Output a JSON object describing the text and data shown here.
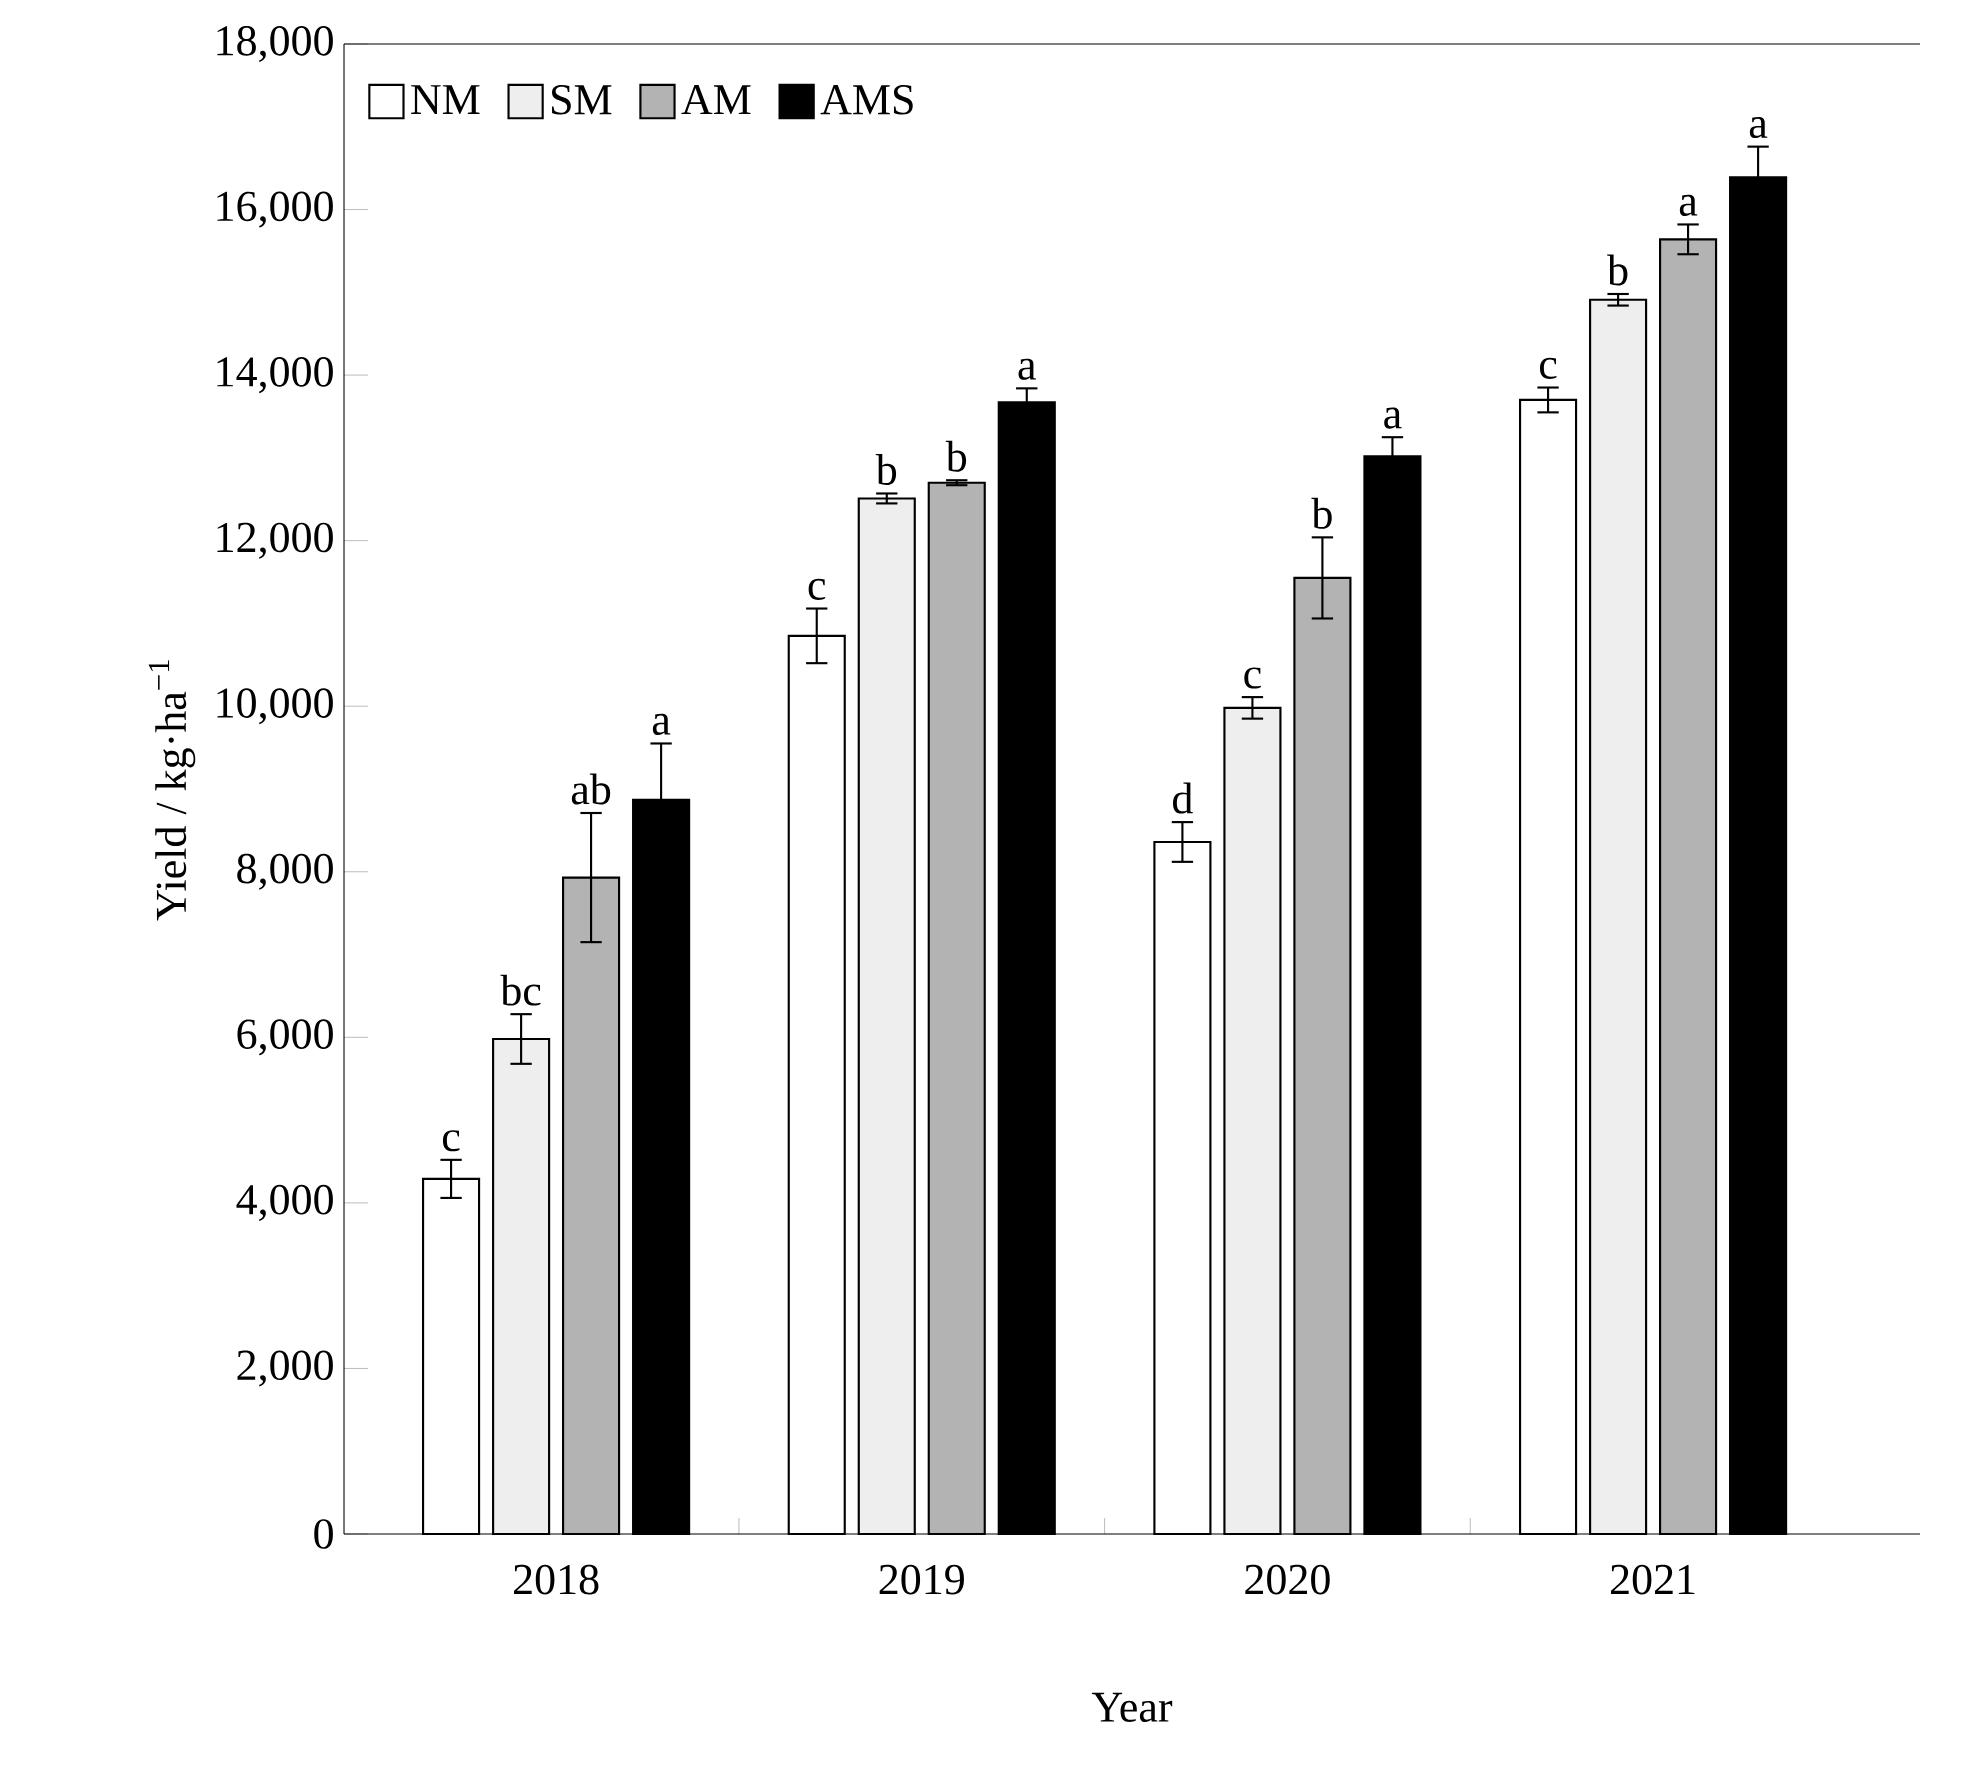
{
  "chart_data": {
    "type": "bar",
    "xlabel": "Year",
    "ylabel": "Yield / kg·ha$^{−1}$",
    "categories": [
      "2018",
      "2019",
      "2020",
      "2021"
    ],
    "series": [
      {
        "name": "NM",
        "color": "#ffffff",
        "values": [
          4290,
          10850,
          8360,
          13700
        ],
        "errors": [
          230,
          330,
          240,
          150
        ],
        "value_labels": [
          "c",
          "c",
          "d",
          "c"
        ]
      },
      {
        "name": "SM",
        "color": "#eeeeee",
        "values": [
          5980,
          12510,
          9980,
          14910
        ],
        "errors": [
          300,
          60,
          130,
          70
        ],
        "value_labels": [
          "bc",
          "b",
          "c",
          "b"
        ]
      },
      {
        "name": "AM",
        "color": "#b3b3b3",
        "values": [
          7930,
          12700,
          11550,
          15640
        ],
        "errors": [
          780,
          30,
          490,
          180
        ],
        "value_labels": [
          "ab",
          "b",
          "b",
          "a"
        ]
      },
      {
        "name": "AMS",
        "color": "#000000",
        "values": [
          8870,
          13670,
          13020,
          16390
        ],
        "errors": [
          680,
          170,
          230,
          370
        ],
        "value_labels": [
          "a",
          "a",
          "a",
          "a"
        ]
      }
    ],
    "ylim": [
      0,
      18000
    ],
    "yticks": [
      0,
      {
        "value": 2000,
        "label": "2,000"
      },
      {
        "value": 4000,
        "label": "4,000"
      },
      {
        "value": 6000,
        "label": "6,000"
      },
      {
        "value": 8000,
        "label": "8,000"
      },
      {
        "value": 10000,
        "label": "10,000"
      },
      {
        "value": 12000,
        "label": "12,000"
      },
      {
        "value": 14000,
        "label": "14,000"
      },
      {
        "value": 16000,
        "label": "16,000"
      },
      {
        "value": 18000,
        "label": "18,000"
      }
    ],
    "legend": "top left",
    "grid": false
  }
}
